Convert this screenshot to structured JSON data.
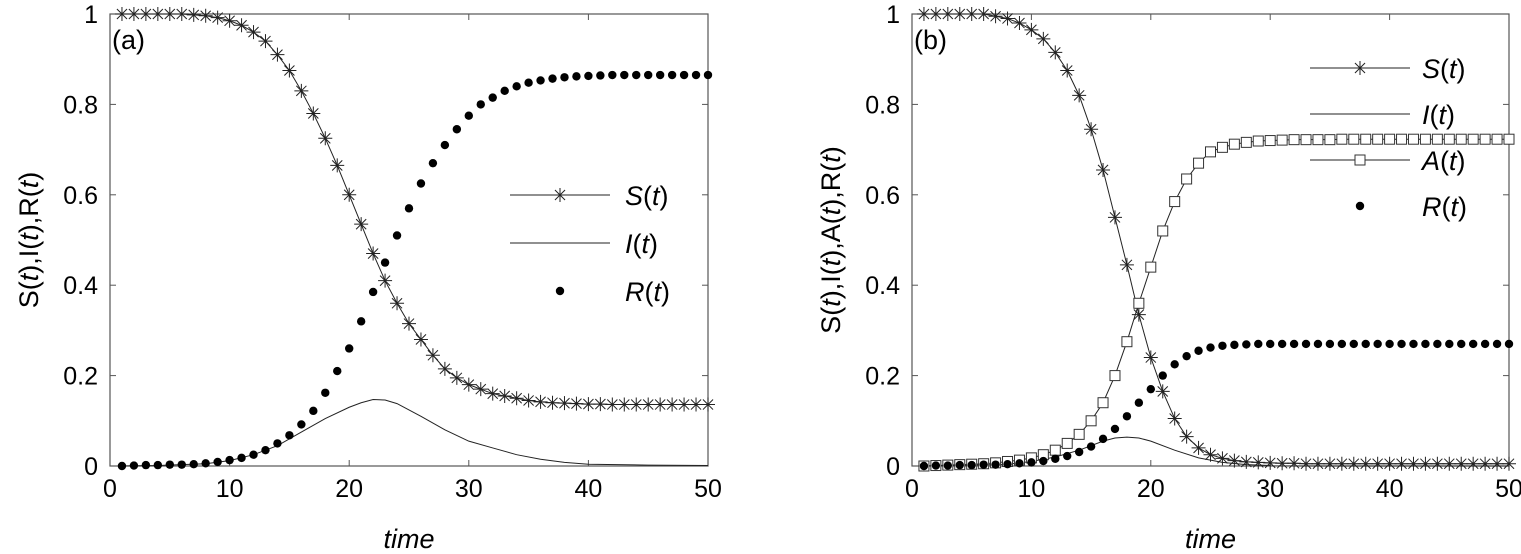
{
  "chart_data": [
    {
      "type": "line",
      "panel_label": "(a)",
      "xlabel": "time",
      "ylabel": "S(t),I(t),R(t)",
      "xlim": [
        0,
        50
      ],
      "ylim": [
        0,
        1
      ],
      "xticks": [
        "0",
        "10",
        "20",
        "30",
        "40",
        "50"
      ],
      "yticks": [
        "0",
        "0.2",
        "0.4",
        "0.6",
        "0.8",
        "1"
      ],
      "legend_position": "right",
      "series": [
        {
          "name": "S(t)",
          "marker": "star",
          "line": true,
          "legend_label": "S(t)",
          "x": [
            1,
            2,
            3,
            4,
            5,
            6,
            7,
            8,
            9,
            10,
            11,
            12,
            13,
            14,
            15,
            16,
            17,
            18,
            19,
            20,
            21,
            22,
            23,
            24,
            25,
            26,
            27,
            28,
            29,
            30,
            31,
            32,
            33,
            34,
            35,
            36,
            37,
            38,
            39,
            40,
            41,
            42,
            43,
            44,
            45,
            46,
            47,
            48,
            49,
            50
          ],
          "values": [
            1.0,
            1.0,
            1.0,
            1.0,
            1.0,
            1.0,
            0.998,
            0.996,
            0.992,
            0.985,
            0.975,
            0.96,
            0.94,
            0.91,
            0.875,
            0.83,
            0.78,
            0.725,
            0.665,
            0.6,
            0.535,
            0.47,
            0.41,
            0.36,
            0.315,
            0.28,
            0.245,
            0.215,
            0.195,
            0.18,
            0.17,
            0.16,
            0.155,
            0.15,
            0.145,
            0.142,
            0.14,
            0.139,
            0.138,
            0.137,
            0.137,
            0.136,
            0.136,
            0.136,
            0.136,
            0.136,
            0.136,
            0.136,
            0.136,
            0.136
          ]
        },
        {
          "name": "I(t)",
          "marker": "none",
          "line": true,
          "legend_label": "I(t)",
          "x": [
            1,
            4,
            8,
            10,
            12,
            14,
            16,
            18,
            20,
            21,
            22,
            23,
            24,
            26,
            28,
            30,
            32,
            34,
            36,
            38,
            40,
            45,
            50
          ],
          "values": [
            0.0,
            0.001,
            0.005,
            0.012,
            0.025,
            0.045,
            0.075,
            0.105,
            0.13,
            0.14,
            0.147,
            0.146,
            0.138,
            0.11,
            0.08,
            0.055,
            0.04,
            0.025,
            0.015,
            0.008,
            0.004,
            0.002,
            0.001
          ]
        },
        {
          "name": "R(t)",
          "marker": "dot",
          "line": false,
          "legend_label": "R(t)",
          "x": [
            1,
            2,
            3,
            4,
            5,
            6,
            7,
            8,
            9,
            10,
            11,
            12,
            13,
            14,
            15,
            16,
            17,
            18,
            19,
            20,
            21,
            22,
            23,
            24,
            25,
            26,
            27,
            28,
            29,
            30,
            31,
            32,
            33,
            34,
            35,
            36,
            37,
            38,
            39,
            40,
            41,
            42,
            43,
            44,
            45,
            46,
            47,
            48,
            49,
            50
          ],
          "values": [
            0.0,
            0.001,
            0.002,
            0.002,
            0.003,
            0.003,
            0.004,
            0.006,
            0.009,
            0.013,
            0.018,
            0.025,
            0.035,
            0.05,
            0.068,
            0.092,
            0.122,
            0.162,
            0.21,
            0.26,
            0.32,
            0.385,
            0.45,
            0.51,
            0.57,
            0.625,
            0.67,
            0.71,
            0.745,
            0.775,
            0.8,
            0.815,
            0.83,
            0.84,
            0.848,
            0.853,
            0.857,
            0.86,
            0.862,
            0.863,
            0.864,
            0.865,
            0.865,
            0.865,
            0.865,
            0.865,
            0.865,
            0.865,
            0.865,
            0.865
          ]
        }
      ]
    },
    {
      "type": "line",
      "panel_label": "(b)",
      "xlabel": "time",
      "ylabel": "S(t),I(t),A(t),R(t)",
      "xlim": [
        0,
        50
      ],
      "ylim": [
        0,
        1
      ],
      "xticks": [
        "0",
        "10",
        "20",
        "30",
        "40",
        "50"
      ],
      "yticks": [
        "0",
        "0.2",
        "0.4",
        "0.6",
        "0.8",
        "1"
      ],
      "legend_position": "top-right",
      "series": [
        {
          "name": "S(t)",
          "marker": "star",
          "line": true,
          "legend_label": "S(t)",
          "x": [
            1,
            2,
            3,
            4,
            5,
            6,
            7,
            8,
            9,
            10,
            11,
            12,
            13,
            14,
            15,
            16,
            17,
            18,
            19,
            20,
            21,
            22,
            23,
            24,
            25,
            26,
            27,
            28,
            29,
            30,
            31,
            32,
            33,
            34,
            35,
            36,
            37,
            38,
            39,
            40,
            41,
            42,
            43,
            44,
            45,
            46,
            47,
            48,
            49,
            50
          ],
          "values": [
            1.0,
            1.0,
            1.0,
            1.0,
            1.0,
            1.0,
            0.995,
            0.99,
            0.98,
            0.965,
            0.945,
            0.915,
            0.875,
            0.82,
            0.745,
            0.655,
            0.55,
            0.445,
            0.335,
            0.24,
            0.165,
            0.105,
            0.065,
            0.04,
            0.025,
            0.017,
            0.012,
            0.009,
            0.008,
            0.007,
            0.006,
            0.006,
            0.005,
            0.005,
            0.005,
            0.005,
            0.005,
            0.005,
            0.005,
            0.005,
            0.005,
            0.005,
            0.005,
            0.005,
            0.005,
            0.005,
            0.005,
            0.005,
            0.005,
            0.005
          ]
        },
        {
          "name": "I(t)",
          "marker": "none",
          "line": true,
          "legend_label": "I(t)",
          "x": [
            1,
            4,
            8,
            10,
            12,
            14,
            16,
            17,
            18,
            19,
            20,
            22,
            24,
            26,
            28,
            30,
            35,
            40,
            50
          ],
          "values": [
            0.0,
            0.001,
            0.004,
            0.01,
            0.02,
            0.035,
            0.055,
            0.062,
            0.064,
            0.062,
            0.055,
            0.035,
            0.018,
            0.008,
            0.003,
            0.001,
            0.0,
            0.0,
            0.0
          ]
        },
        {
          "name": "A(t)",
          "marker": "square",
          "line": true,
          "legend_label": "A(t)",
          "x": [
            1,
            2,
            3,
            4,
            5,
            6,
            7,
            8,
            9,
            10,
            11,
            12,
            13,
            14,
            15,
            16,
            17,
            18,
            19,
            20,
            21,
            22,
            23,
            24,
            25,
            26,
            27,
            28,
            29,
            30,
            31,
            32,
            33,
            34,
            35,
            36,
            37,
            38,
            39,
            40,
            41,
            42,
            43,
            44,
            45,
            46,
            47,
            48,
            49,
            50
          ],
          "values": [
            0.0,
            0.001,
            0.002,
            0.003,
            0.004,
            0.005,
            0.007,
            0.01,
            0.013,
            0.018,
            0.025,
            0.035,
            0.05,
            0.07,
            0.1,
            0.14,
            0.2,
            0.275,
            0.36,
            0.44,
            0.52,
            0.585,
            0.635,
            0.67,
            0.695,
            0.705,
            0.712,
            0.716,
            0.719,
            0.72,
            0.721,
            0.722,
            0.722,
            0.722,
            0.722,
            0.723,
            0.723,
            0.723,
            0.723,
            0.723,
            0.723,
            0.723,
            0.723,
            0.723,
            0.723,
            0.723,
            0.723,
            0.723,
            0.723,
            0.723
          ]
        },
        {
          "name": "R(t)",
          "marker": "dot",
          "line": false,
          "legend_label": "R(t)",
          "x": [
            1,
            2,
            3,
            4,
            5,
            6,
            7,
            8,
            9,
            10,
            11,
            12,
            13,
            14,
            15,
            16,
            17,
            18,
            19,
            20,
            21,
            22,
            23,
            24,
            25,
            26,
            27,
            28,
            29,
            30,
            31,
            32,
            33,
            34,
            35,
            36,
            37,
            38,
            39,
            40,
            41,
            42,
            43,
            44,
            45,
            46,
            47,
            48,
            49,
            50
          ],
          "values": [
            0.0,
            0.001,
            0.001,
            0.002,
            0.002,
            0.003,
            0.003,
            0.004,
            0.006,
            0.008,
            0.011,
            0.016,
            0.022,
            0.031,
            0.043,
            0.06,
            0.082,
            0.11,
            0.14,
            0.17,
            0.2,
            0.225,
            0.243,
            0.255,
            0.262,
            0.266,
            0.268,
            0.269,
            0.27,
            0.27,
            0.27,
            0.27,
            0.27,
            0.27,
            0.27,
            0.27,
            0.27,
            0.27,
            0.27,
            0.27,
            0.27,
            0.27,
            0.27,
            0.27,
            0.27,
            0.27,
            0.27,
            0.27,
            0.27,
            0.27
          ]
        }
      ]
    }
  ]
}
